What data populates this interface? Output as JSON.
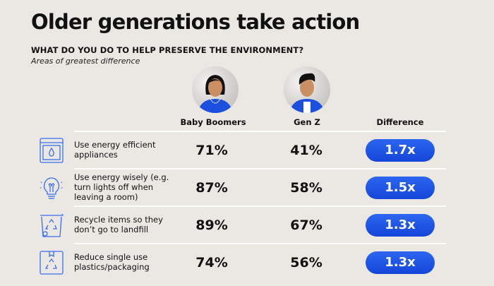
{
  "title": "Older generations take action",
  "subtitle": "WHAT DO YOU DO TO HELP PRESERVE THE ENVIRONMENT?",
  "note": "Areas of greatest difference",
  "colors": {
    "background": "#ebe8e4",
    "accent": "#1a4fe0",
    "icon": "#3a6df0"
  },
  "chart_data": {
    "type": "table",
    "columns": [
      "Baby Boomers",
      "Gen Z",
      "Difference"
    ],
    "rows": [
      {
        "label": "Use energy efficient appliances",
        "icon": "appliance-icon",
        "baby_boomers": "71%",
        "gen_z": "41%",
        "difference": "1.7x"
      },
      {
        "label": "Use energy wisely (e.g. turn lights off when leaving a room)",
        "icon": "lightbulb-icon",
        "baby_boomers": "87%",
        "gen_z": "58%",
        "difference": "1.5x"
      },
      {
        "label": "Recycle items so they don’t go to landfill",
        "icon": "recycle-bin-icon",
        "baby_boomers": "89%",
        "gen_z": "67%",
        "difference": "1.3x"
      },
      {
        "label": "Reduce single use plastics/packaging",
        "icon": "recycle-package-icon",
        "baby_boomers": "74%",
        "gen_z": "56%",
        "difference": "1.3x"
      }
    ]
  }
}
